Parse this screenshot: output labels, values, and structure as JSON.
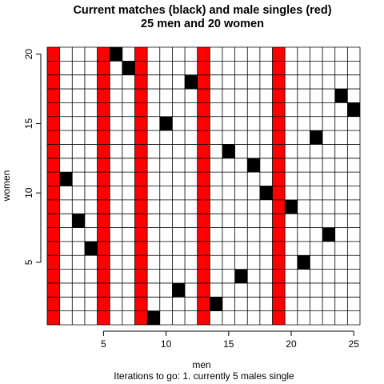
{
  "chart_data": {
    "type": "heatmap",
    "title_lines": [
      "Current matches (black) and male singles (red)",
      "25 men and 20 women"
    ],
    "xlabel": "men",
    "ylabel": "women",
    "subtitle": "Iterations to go: 1. currently 5 males single",
    "xlim": [
      0.5,
      25.5
    ],
    "ylim": [
      0.5,
      20.5
    ],
    "n_men": 25,
    "n_women": 20,
    "xticks": [
      5,
      10,
      15,
      20,
      25
    ],
    "yticks": [
      5,
      10,
      15,
      20
    ],
    "grid": true,
    "single_men": [
      1,
      5,
      8,
      13,
      19
    ],
    "matches": [
      {
        "man": 2,
        "woman": 11
      },
      {
        "man": 3,
        "woman": 8
      },
      {
        "man": 4,
        "woman": 6
      },
      {
        "man": 6,
        "woman": 20
      },
      {
        "man": 7,
        "woman": 19
      },
      {
        "man": 9,
        "woman": 1
      },
      {
        "man": 10,
        "woman": 15
      },
      {
        "man": 11,
        "woman": 3
      },
      {
        "man": 12,
        "woman": 18
      },
      {
        "man": 14,
        "woman": 2
      },
      {
        "man": 15,
        "woman": 13
      },
      {
        "man": 16,
        "woman": 4
      },
      {
        "man": 17,
        "woman": 12
      },
      {
        "man": 18,
        "woman": 10
      },
      {
        "man": 20,
        "woman": 9
      },
      {
        "man": 21,
        "woman": 5
      },
      {
        "man": 22,
        "woman": 14
      },
      {
        "man": 23,
        "woman": 7
      },
      {
        "man": 24,
        "woman": 17
      },
      {
        "man": 25,
        "woman": 16
      }
    ],
    "colors": {
      "match": "#000000",
      "single": "#ff0000",
      "grid": "#000000",
      "background": "#ffffff"
    }
  }
}
